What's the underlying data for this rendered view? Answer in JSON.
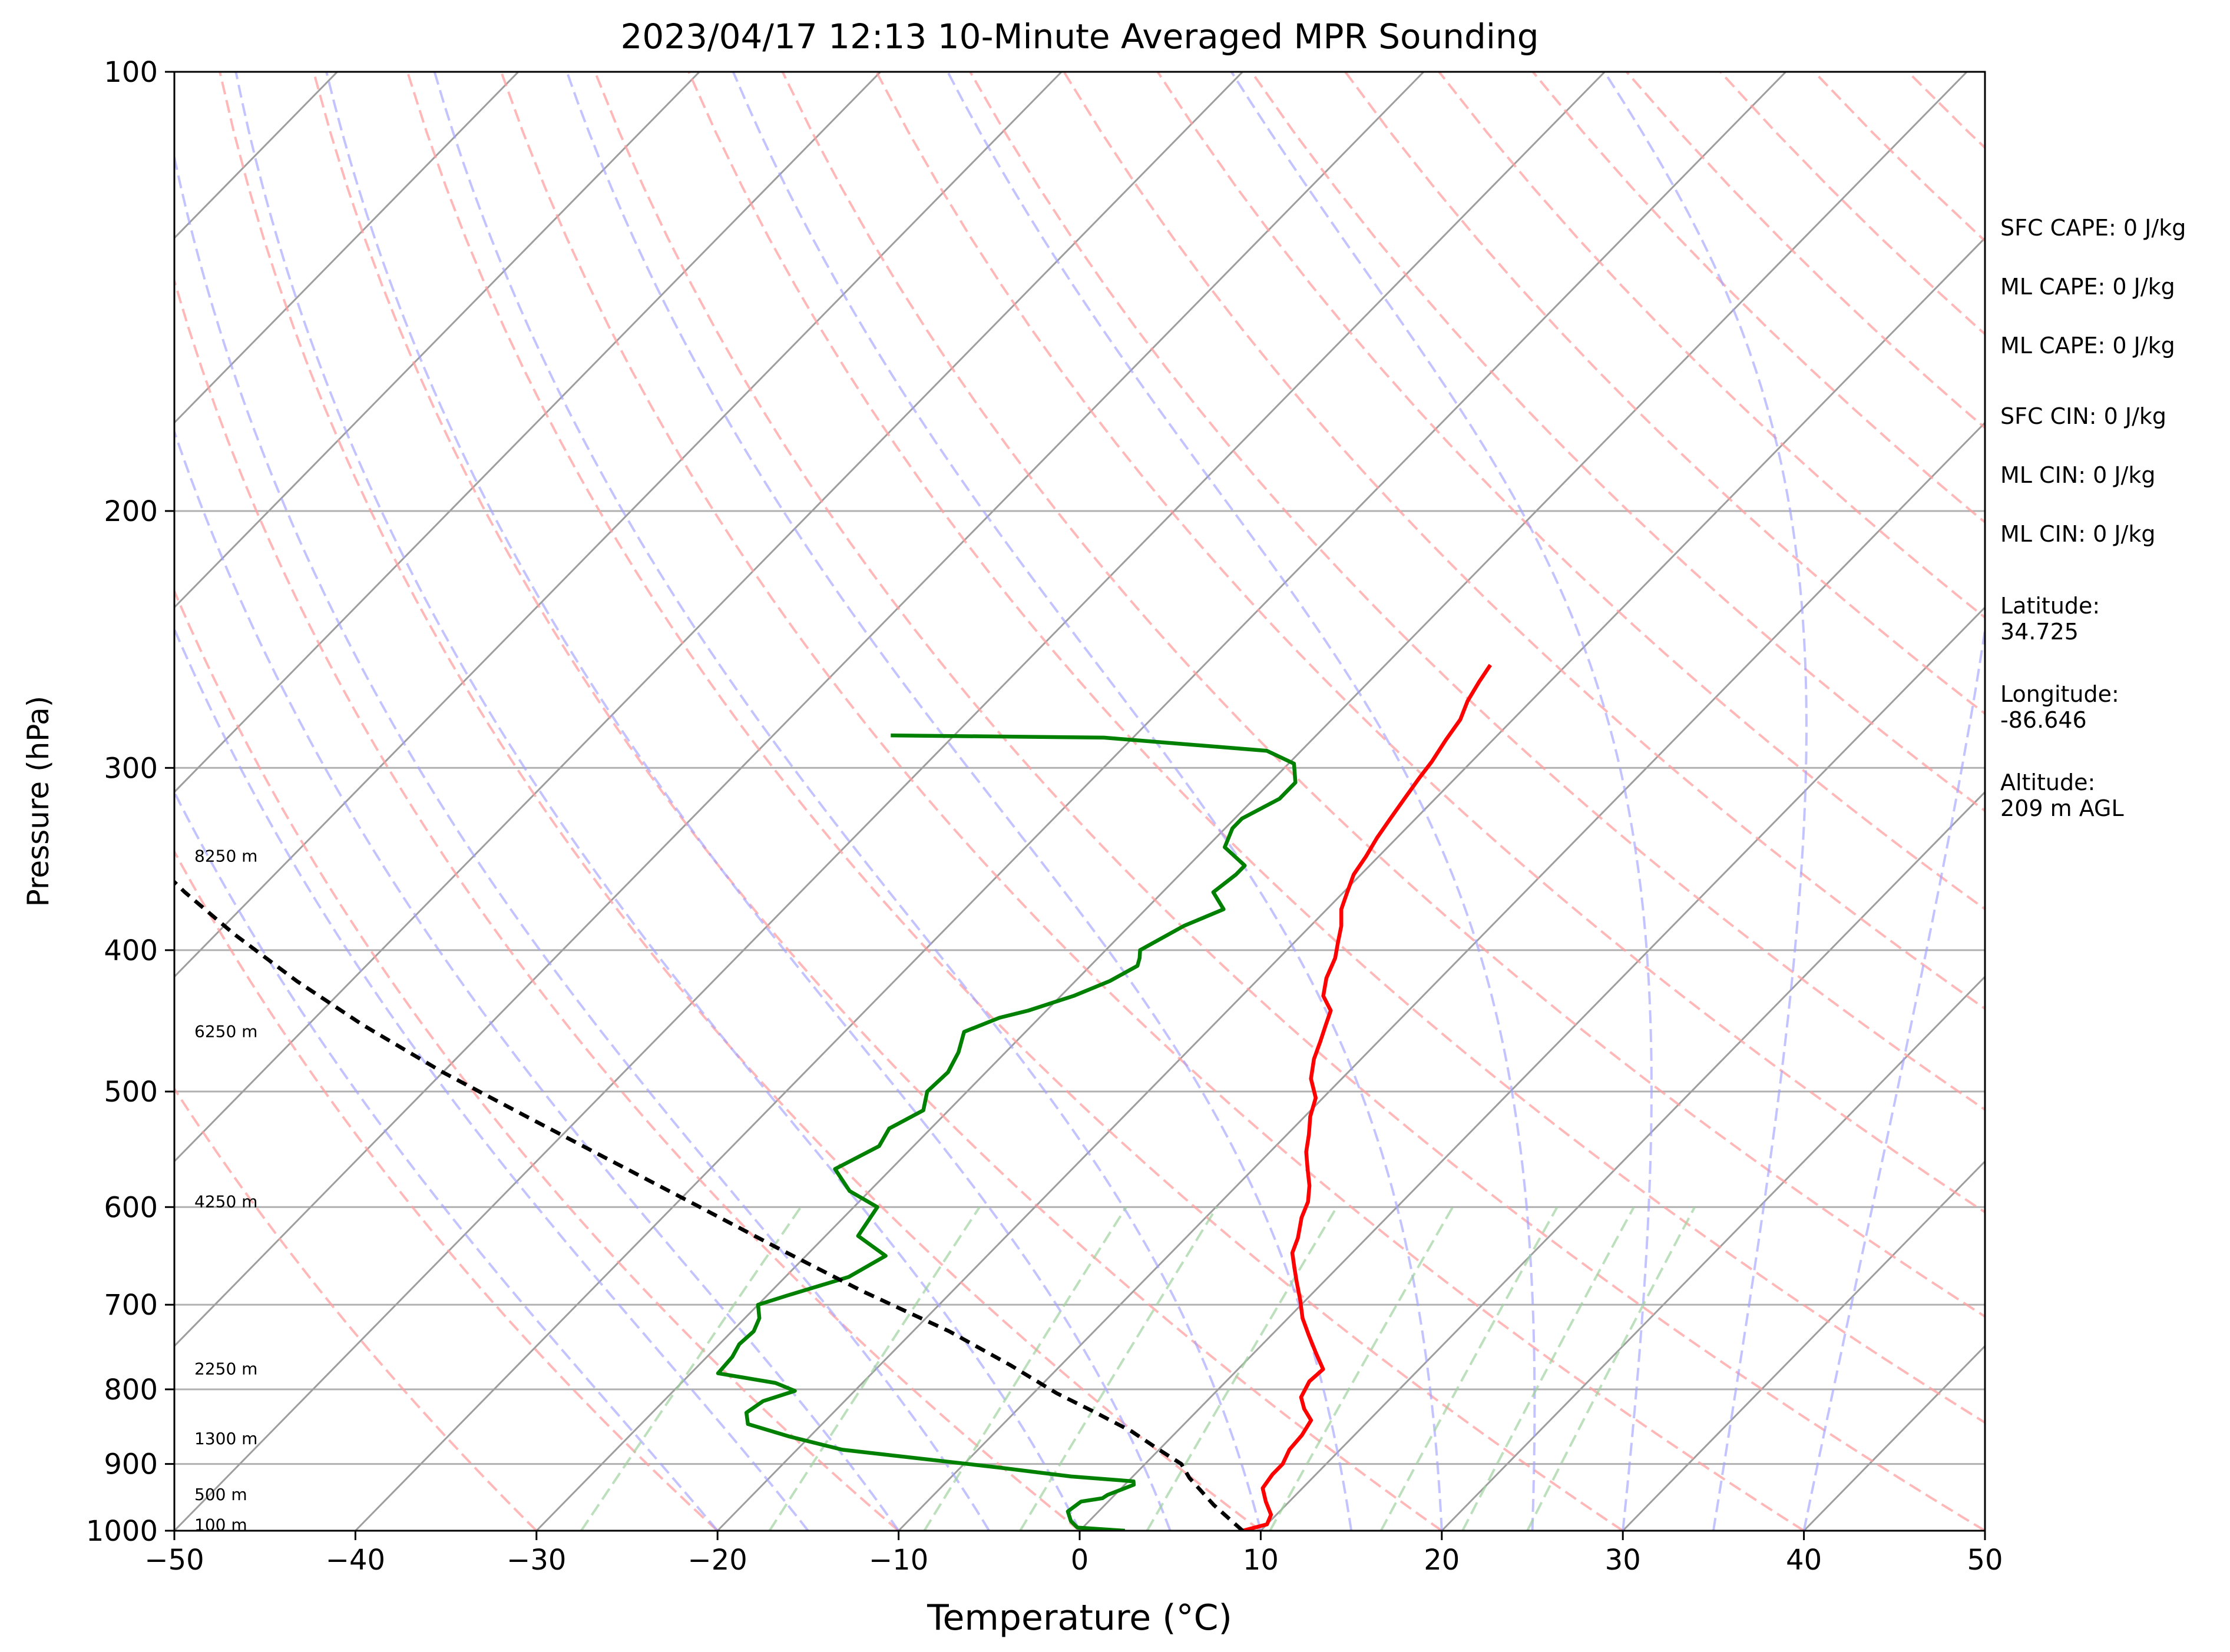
{
  "chart_data": {
    "type": "line",
    "title": "2023/04/17 12:13 10-Minute Averaged MPR Sounding",
    "xlabel": "Temperature (°C)",
    "ylabel": "Pressure (hPa)",
    "xlim": [
      -50,
      50
    ],
    "ylim": [
      1000,
      100
    ],
    "y_scale": "log",
    "x_ticks": [
      -50,
      -40,
      -30,
      -20,
      -10,
      0,
      10,
      20,
      30,
      40,
      50
    ],
    "x_tick_labels": [
      "−50",
      "−40",
      "−30",
      "−20",
      "−10",
      "0",
      "10",
      "20",
      "30",
      "40",
      "50"
    ],
    "y_ticks": [
      1000,
      900,
      800,
      700,
      600,
      500,
      400,
      300,
      200,
      100
    ],
    "y_tick_labels": [
      "1000",
      "900",
      "800",
      "700",
      "600",
      "500",
      "400",
      "300",
      "200",
      "100"
    ],
    "grid": true,
    "skew": true,
    "colors": {
      "temperature": "#ff0000",
      "dewpoint": "#008000",
      "parcel": "#000000",
      "dry_adiabats": "#ff9f9f",
      "moist_adiabats": "#a3a3ff",
      "mixing_ratio": "#9fd19f",
      "isotherms": "#9e9e9e",
      "isobars": "#b0b0b0"
    },
    "series": [
      {
        "key": "temperature",
        "points": [
          [
            9.0,
            1000
          ],
          [
            10.0,
            990
          ],
          [
            9.7,
            975
          ],
          [
            8.7,
            955
          ],
          [
            7.8,
            935
          ],
          [
            7.6,
            915
          ],
          [
            7.6,
            900
          ],
          [
            7.2,
            880
          ],
          [
            7.1,
            860
          ],
          [
            6.8,
            840
          ],
          [
            5.8,
            825
          ],
          [
            5.0,
            810
          ],
          [
            4.6,
            790
          ],
          [
            4.7,
            775
          ],
          [
            3.4,
            755
          ],
          [
            2.1,
            735
          ],
          [
            0.8,
            715
          ],
          [
            -0.3,
            695
          ],
          [
            -1.5,
            675
          ],
          [
            -2.4,
            660
          ],
          [
            -3.3,
            645
          ],
          [
            -3.8,
            630
          ],
          [
            -4.7,
            610
          ],
          [
            -5.2,
            595
          ],
          [
            -6.0,
            580
          ],
          [
            -7.0,
            565
          ],
          [
            -8.0,
            550
          ],
          [
            -8.8,
            535
          ],
          [
            -9.7,
            520
          ],
          [
            -10.4,
            505
          ],
          [
            -11.7,
            490
          ],
          [
            -12.6,
            475
          ],
          [
            -13.2,
            462
          ],
          [
            -13.8,
            450
          ],
          [
            -14.3,
            440
          ],
          [
            -15.5,
            430
          ],
          [
            -16.3,
            418
          ],
          [
            -16.9,
            405
          ],
          [
            -17.6,
            395
          ],
          [
            -18.3,
            385
          ],
          [
            -19.2,
            375
          ],
          [
            -19.8,
            365
          ],
          [
            -20.4,
            355
          ],
          [
            -20.7,
            345
          ],
          [
            -21.1,
            335
          ],
          [
            -21.4,
            325
          ],
          [
            -21.7,
            315
          ],
          [
            -22.0,
            305
          ],
          [
            -22.2,
            297
          ],
          [
            -22.6,
            287
          ],
          [
            -22.9,
            278
          ],
          [
            -23.5,
            270
          ],
          [
            -23.9,
            262
          ],
          [
            -24.2,
            255
          ]
        ]
      },
      {
        "key": "dewpoint",
        "points": [
          [
            2.5,
            1000
          ],
          [
            -0.3,
            995
          ],
          [
            -1.0,
            985
          ],
          [
            -1.7,
            970
          ],
          [
            -1.5,
            955
          ],
          [
            -0.5,
            950
          ],
          [
            -0.4,
            945
          ],
          [
            0.5,
            930
          ],
          [
            0.3,
            925
          ],
          [
            -3.4,
            918
          ],
          [
            -7.9,
            905
          ],
          [
            -17.5,
            880
          ],
          [
            -21.1,
            862
          ],
          [
            -24.1,
            845
          ],
          [
            -24.8,
            830
          ],
          [
            -24.5,
            815
          ],
          [
            -23.3,
            802
          ],
          [
            -24.8,
            792
          ],
          [
            -28.5,
            780
          ],
          [
            -28.6,
            760
          ],
          [
            -28.9,
            745
          ],
          [
            -28.8,
            730
          ],
          [
            -29.2,
            715
          ],
          [
            -30.0,
            700
          ],
          [
            -28.9,
            690
          ],
          [
            -26.5,
            670
          ],
          [
            -25.6,
            648
          ],
          [
            -28.2,
            628
          ],
          [
            -28.7,
            600
          ],
          [
            -31.1,
            585
          ],
          [
            -33.1,
            565
          ],
          [
            -31.9,
            545
          ],
          [
            -32.3,
            530
          ],
          [
            -31.4,
            515
          ],
          [
            -32.2,
            500
          ],
          [
            -32.1,
            485
          ],
          [
            -32.6,
            470
          ],
          [
            -33.4,
            455
          ],
          [
            -32.2,
            445
          ],
          [
            -31.0,
            440
          ],
          [
            -29.3,
            430
          ],
          [
            -28.1,
            420
          ],
          [
            -27.4,
            410
          ],
          [
            -27.7,
            405
          ],
          [
            -28.1,
            400
          ],
          [
            -27.0,
            385
          ],
          [
            -25.7,
            375
          ],
          [
            -27.2,
            365
          ],
          [
            -26.9,
            355
          ],
          [
            -26.9,
            350
          ],
          [
            -29.0,
            340
          ],
          [
            -29.6,
            330
          ],
          [
            -29.6,
            325
          ],
          [
            -28.6,
            315
          ],
          [
            -28.6,
            307
          ],
          [
            -29.7,
            298
          ],
          [
            -31.9,
            292
          ],
          [
            -41.6,
            286
          ],
          [
            -53.5,
            285
          ]
        ]
      },
      {
        "key": "parcel",
        "points": [
          [
            9.0,
            1000
          ],
          [
            6.0,
            960
          ],
          [
            3.2,
            920
          ],
          [
            2.0,
            900
          ],
          [
            0.0,
            880
          ],
          [
            -2.5,
            855
          ],
          [
            -5.5,
            830
          ],
          [
            -8.7,
            805
          ],
          [
            -12.8,
            770
          ],
          [
            -18.0,
            730
          ],
          [
            -25.0,
            685
          ],
          [
            -32.0,
            640
          ],
          [
            -38.5,
            600
          ],
          [
            -45.5,
            560
          ],
          [
            -53.0,
            520
          ],
          [
            -60.0,
            485
          ],
          [
            -67.0,
            450
          ],
          [
            -73.0,
            420
          ],
          [
            -79.0,
            390
          ],
          [
            -84.0,
            365
          ],
          [
            -89.0,
            340
          ],
          [
            -94.0,
            315
          ],
          [
            -99.0,
            293
          ],
          [
            -103.0,
            275
          ],
          [
            -106.5,
            262
          ]
        ]
      }
    ],
    "height_annotations": [
      {
        "label": "100 m",
        "pressure": 991
      },
      {
        "label": "500 m",
        "pressure": 945
      },
      {
        "label": "1300 m",
        "pressure": 865
      },
      {
        "label": "2250 m",
        "pressure": 775
      },
      {
        "label": "4250 m",
        "pressure": 595
      },
      {
        "label": "6250 m",
        "pressure": 455
      },
      {
        "label": "8250 m",
        "pressure": 345
      }
    ],
    "side_stats": [
      [
        "SFC CAPE: 0 J/kg"
      ],
      [
        "ML CAPE: 0 J/kg"
      ],
      [
        "ML CAPE: 0 J/kg"
      ],
      [
        "SFC CIN: 0 J/kg"
      ],
      [
        "ML CIN: 0 J/kg"
      ],
      [
        "ML CIN: 0 J/kg"
      ],
      [
        "Latitude:",
        "34.725"
      ],
      [
        "Longitude:",
        "-86.646"
      ],
      [
        "Altitude:",
        "209 m AGL"
      ]
    ]
  }
}
